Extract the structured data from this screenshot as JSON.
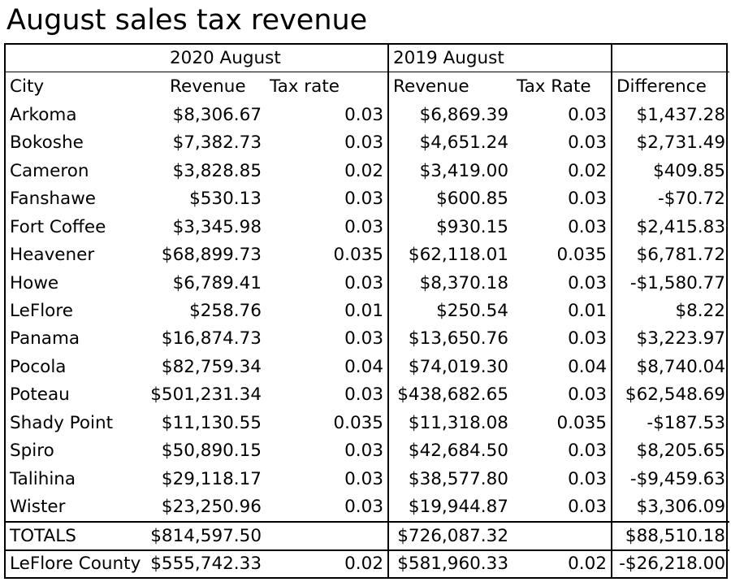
{
  "title": "August sales tax revenue",
  "period_headers": {
    "current": "2020 August",
    "previous": "2019 August",
    "blank": ""
  },
  "columns": [
    "City",
    "Revenue",
    "Tax rate",
    "Revenue",
    "Tax Rate",
    "Difference"
  ],
  "rows": [
    [
      "Arkoma",
      "$8,306.67",
      "0.03",
      "$6,869.39",
      "0.03",
      "$1,437.28"
    ],
    [
      "Bokoshe",
      "$7,382.73",
      "0.03",
      "$4,651.24",
      "0.03",
      "$2,731.49"
    ],
    [
      "Cameron",
      "$3,828.85",
      "0.02",
      "$3,419.00",
      "0.02",
      "$409.85"
    ],
    [
      "Fanshawe",
      "$530.13",
      "0.03",
      "$600.85",
      "0.03",
      "-$70.72"
    ],
    [
      "Fort Coffee",
      "$3,345.98",
      "0.03",
      "$930.15",
      "0.03",
      "$2,415.83"
    ],
    [
      "Heavener",
      "$68,899.73",
      "0.035",
      "$62,118.01",
      "0.035",
      "$6,781.72"
    ],
    [
      "Howe",
      "$6,789.41",
      "0.03",
      "$8,370.18",
      "0.03",
      "-$1,580.77"
    ],
    [
      "LeFlore",
      "$258.76",
      "0.01",
      "$250.54",
      "0.01",
      "$8.22"
    ],
    [
      "Panama",
      "$16,874.73",
      "0.03",
      "$13,650.76",
      "0.03",
      "$3,223.97"
    ],
    [
      "Pocola",
      "$82,759.34",
      "0.04",
      "$74,019.30",
      "0.04",
      "$8,740.04"
    ],
    [
      "Poteau",
      "$501,231.34",
      "0.03",
      "$438,682.65",
      "0.03",
      "$62,548.69"
    ],
    [
      "Shady Point",
      "$11,130.55",
      "0.035",
      "$11,318.08",
      "0.035",
      "-$187.53"
    ],
    [
      "Spiro",
      "$50,890.15",
      "0.03",
      "$42,684.50",
      "0.03",
      "$8,205.65"
    ],
    [
      "Talihina",
      "$29,118.17",
      "0.03",
      "$38,577.80",
      "0.03",
      "-$9,459.63"
    ],
    [
      "Wister",
      "$23,250.96",
      "0.03",
      "$19,944.87",
      "0.03",
      "$3,306.09"
    ]
  ],
  "totals": [
    "TOTALS",
    "$814,597.50",
    "",
    "$726,087.32",
    "",
    "$88,510.18"
  ],
  "county": [
    "LeFlore County",
    "$555,742.33",
    "0.02",
    "$581,960.33",
    "0.02",
    "-$26,218.00"
  ]
}
